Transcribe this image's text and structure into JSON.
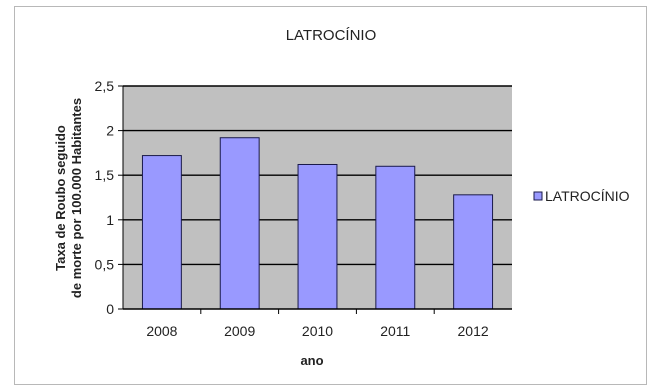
{
  "chart_data": {
    "type": "bar",
    "title": "LATROCÍNIO",
    "xlabel": "ano",
    "ylabel": "Taxa de Roubo seguido de morte por 100.000 Habitantes",
    "categories": [
      "2008",
      "2009",
      "2010",
      "2011",
      "2012"
    ],
    "series": [
      {
        "name": "LATROCÍNIO",
        "values": [
          1.72,
          1.92,
          1.62,
          1.6,
          1.28
        ]
      }
    ],
    "ylim": [
      0,
      2.5
    ],
    "yticks": [
      "0",
      "0,5",
      "1",
      "1,5",
      "2",
      "2,5"
    ],
    "grid": true,
    "legend_position": "right",
    "colors": {
      "bar_fill": "#9999ff",
      "bar_stroke": "#1a1a4a",
      "plot_background": "#c0c0c0",
      "gridline": "#000000"
    }
  }
}
